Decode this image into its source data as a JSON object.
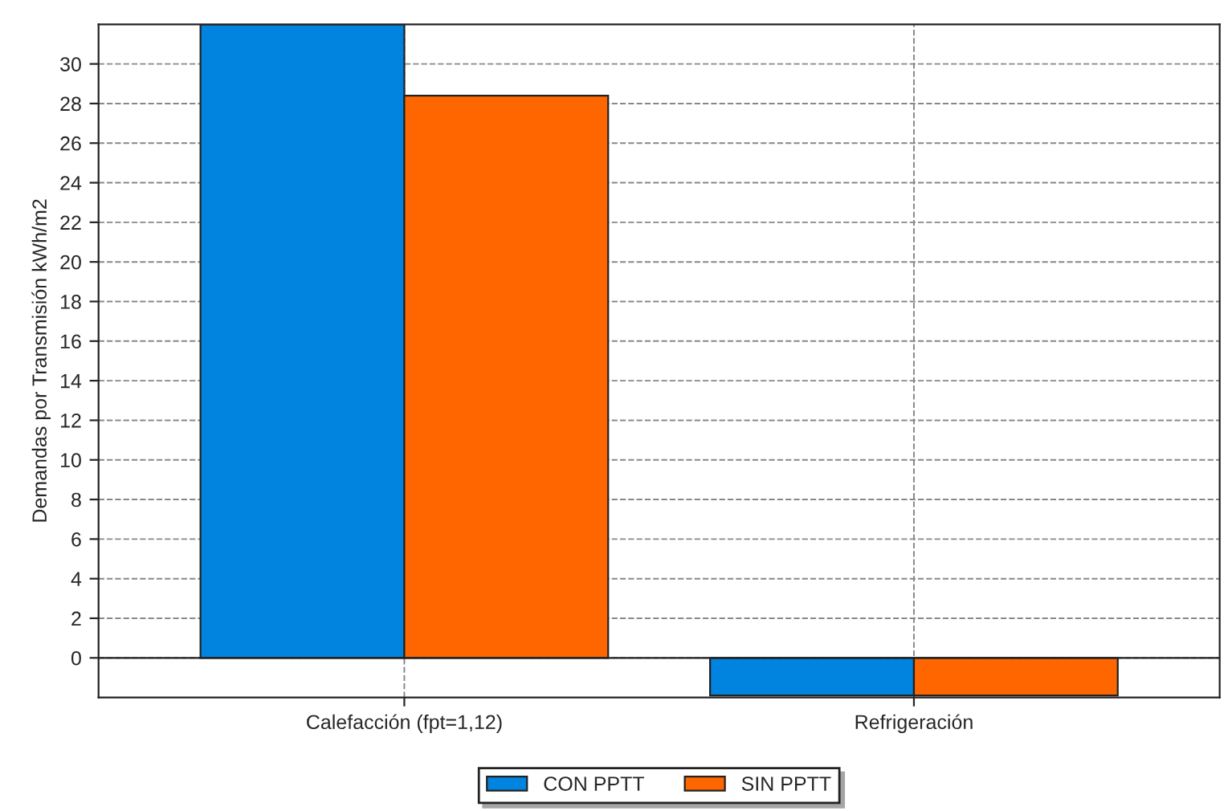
{
  "chart_data": {
    "type": "bar",
    "ylabel": "Demandas por Transmisión kWh/m2",
    "categories": [
      "Calefacción (fpt=1,12)",
      "Refrigeración"
    ],
    "series": [
      {
        "name": "CON PPTT",
        "color": "#0084e0",
        "values": [
          32.0,
          -1.9
        ]
      },
      {
        "name": "SIN PPTT",
        "color": "#ff6600",
        "values": [
          28.4,
          -1.9
        ]
      }
    ],
    "ylim": [
      -2,
      32
    ],
    "yticks": [
      0,
      2,
      4,
      6,
      8,
      10,
      12,
      14,
      16,
      18,
      20,
      22,
      24,
      26,
      28,
      30
    ],
    "grid": true,
    "legend": "bottom"
  }
}
